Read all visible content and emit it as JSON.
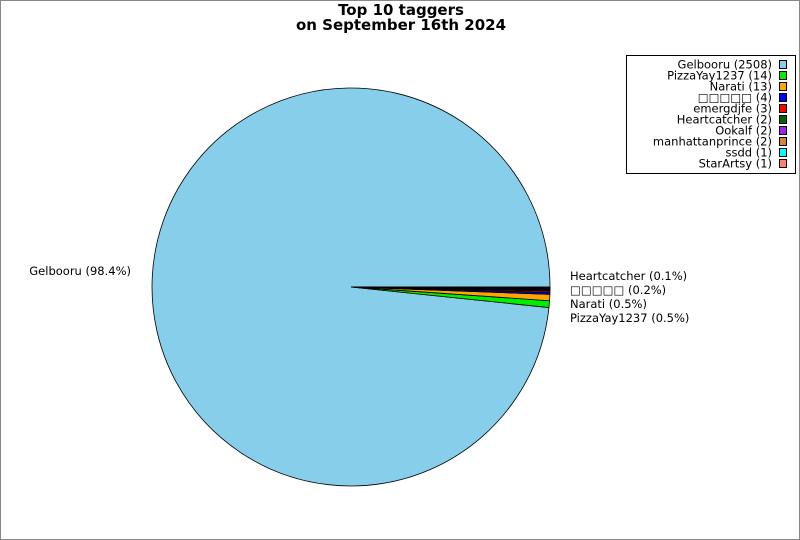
{
  "chart_data": {
    "type": "pie",
    "title_lines": [
      "Top 10 taggers",
      "on September 16th 2024"
    ],
    "slices": [
      {
        "name": "Gelbooru",
        "value": 2508,
        "color": "#87ceeb",
        "label": "Gelbooru (98.4%)"
      },
      {
        "name": "PizzaYay1237",
        "value": 14,
        "color": "#00ee00",
        "label": "PizzaYay1237 (0.5%)"
      },
      {
        "name": "Narati",
        "value": 13,
        "color": "#ffa500",
        "label": "Narati (0.5%)"
      },
      {
        "name": "□□□□□",
        "value": 4,
        "color": "#0000ff",
        "label": "□□□□□ (0.2%)"
      },
      {
        "name": "emergdjfe",
        "value": 3,
        "color": "#ff0000",
        "label": ""
      },
      {
        "name": "Heartcatcher",
        "value": 2,
        "color": "#006400",
        "label": "Heartcatcher (0.1%)"
      },
      {
        "name": "Ookalf",
        "value": 2,
        "color": "#a020f0",
        "label": ""
      },
      {
        "name": "manhattanprince",
        "value": 2,
        "color": "#cd853f",
        "label": ""
      },
      {
        "name": "ssdd",
        "value": 1,
        "color": "#00ffff",
        "label": ""
      },
      {
        "name": "StarArtsy",
        "value": 1,
        "color": "#fa8072",
        "label": ""
      }
    ],
    "legend_placement": "top-right"
  }
}
